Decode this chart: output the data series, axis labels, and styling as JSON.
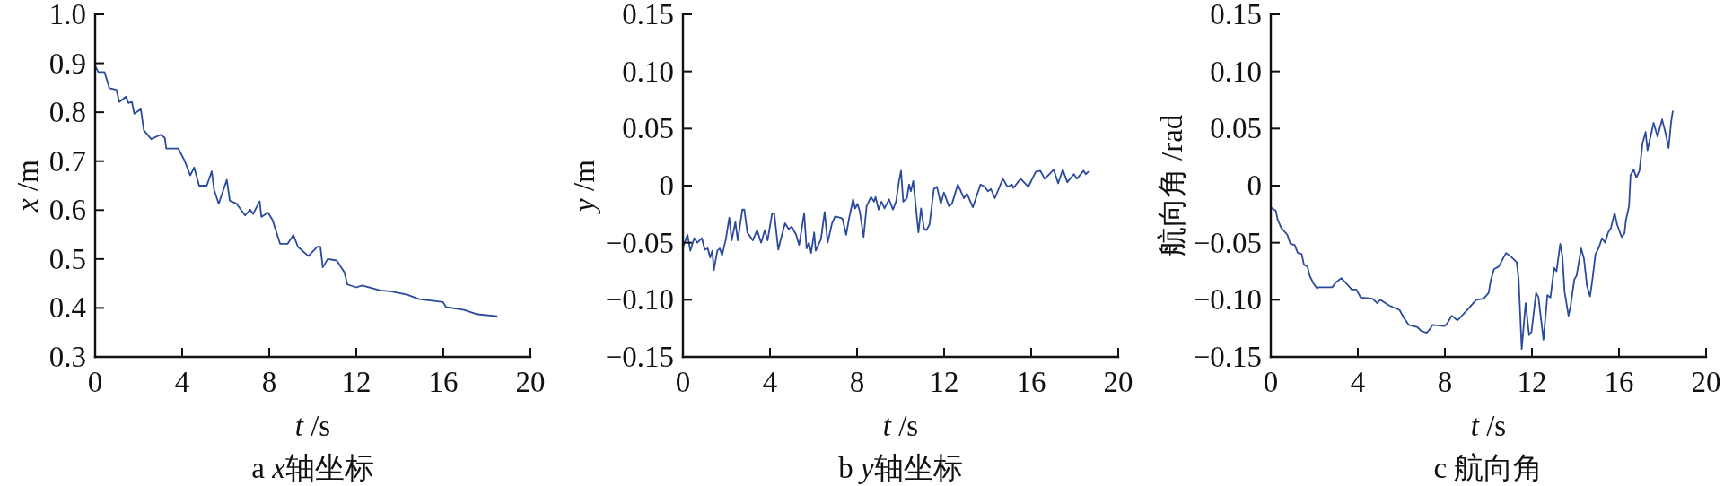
{
  "chart_data": [
    {
      "type": "line",
      "title": "a x轴坐标",
      "xlabel": "t /s",
      "ylabel": "x /m",
      "xlim": [
        0,
        20
      ],
      "xticks": [
        0,
        4,
        8,
        12,
        16,
        20
      ],
      "ylim": [
        0.3,
        1.0
      ],
      "yticks": [
        0.3,
        0.4,
        0.5,
        0.6,
        0.7,
        0.8,
        0.9,
        {
          "value": 1,
          "label": "1.0"
        }
      ],
      "x": [
        0,
        0.15,
        0.43,
        0.66,
        0.98,
        1.11,
        1.42,
        1.53,
        1.69,
        1.8,
        2.1,
        2.24,
        2.58,
        3.0,
        3.2,
        3.27,
        3.82,
        4.1,
        4.37,
        4.55,
        4.78,
        5.13,
        5.36,
        5.47,
        5.68,
        6.05,
        6.19,
        6.5,
        6.89,
        7.12,
        7.26,
        7.56,
        7.64,
        7.94,
        8.15,
        8.5,
        8.84,
        9.11,
        9.32,
        9.8,
        10.21,
        10.35,
        10.46,
        10.69,
        11.1,
        11.45,
        11.59,
        12.0,
        12.27,
        13.1,
        13.58,
        14.34,
        14.89,
        15.99,
        16.12,
        16.95,
        17.57,
        18.46
      ],
      "series": [
        {
          "color": "#2b4a9b",
          "values": [
            0.895,
            0.882,
            0.882,
            0.849,
            0.846,
            0.821,
            0.832,
            0.819,
            0.821,
            0.797,
            0.806,
            0.763,
            0.745,
            0.754,
            0.748,
            0.726,
            0.726,
            0.702,
            0.671,
            0.687,
            0.65,
            0.65,
            0.679,
            0.641,
            0.613,
            0.662,
            0.619,
            0.613,
            0.589,
            0.601,
            0.592,
            0.618,
            0.586,
            0.595,
            0.58,
            0.531,
            0.531,
            0.549,
            0.525,
            0.506,
            0.525,
            0.525,
            0.483,
            0.5,
            0.497,
            0.473,
            0.448,
            0.442,
            0.446,
            0.436,
            0.434,
            0.427,
            0.418,
            0.412,
            0.402,
            0.396,
            0.387,
            0.383
          ]
        }
      ]
    },
    {
      "type": "line",
      "title": "b y轴坐标",
      "xlabel": "t /s",
      "ylabel": "y /m",
      "xlim": [
        0,
        20
      ],
      "xticks": [
        0,
        4,
        8,
        12,
        16,
        20
      ],
      "ylim": [
        -0.15,
        0.15
      ],
      "yticks": [
        {
          "value": -0.15,
          "label": "−0.15"
        },
        {
          "value": -0.1,
          "label": "−0.10"
        },
        {
          "value": -0.05,
          "label": "−0.05"
        },
        0,
        0.05,
        {
          "value": 0.1,
          "label": "0.10"
        },
        0.15
      ],
      "x": [
        0,
        0.21,
        0.34,
        0.52,
        0.66,
        0.87,
        1.0,
        1.14,
        1.25,
        1.35,
        1.42,
        1.58,
        1.69,
        1.8,
        1.97,
        2.13,
        2.24,
        2.41,
        2.52,
        2.73,
        2.82,
        2.96,
        3.21,
        3.41,
        3.59,
        3.76,
        3.89,
        4.1,
        4.2,
        4.38,
        4.51,
        4.69,
        4.86,
        5.0,
        5.2,
        5.34,
        5.57,
        5.68,
        5.79,
        5.89,
        6.03,
        6.1,
        6.34,
        6.51,
        6.65,
        6.85,
        6.99,
        7.2,
        7.33,
        7.5,
        7.64,
        7.82,
        7.91,
        8.02,
        8.13,
        8.3,
        8.44,
        8.64,
        8.78,
        8.85,
        8.99,
        9.12,
        9.26,
        9.47,
        9.65,
        9.79,
        9.92,
        10.02,
        10.12,
        10.29,
        10.39,
        10.47,
        10.58,
        10.75,
        10.82,
        10.94,
        11.08,
        11.19,
        11.33,
        11.53,
        11.67,
        11.85,
        11.99,
        12.22,
        12.36,
        12.63,
        12.91,
        13.05,
        13.32,
        13.67,
        13.87,
        14.01,
        14.15,
        14.33,
        14.7,
        14.91,
        15.11,
        15.18,
        15.52,
        15.87,
        16.21,
        16.42,
        16.62,
        16.83,
        17.04,
        17.24,
        17.45,
        17.66,
        17.96,
        18.1,
        18.41,
        18.51,
        18.62
      ],
      "series": [
        {
          "color": "#2b4a9b",
          "values": [
            -0.054,
            -0.043,
            -0.057,
            -0.046,
            -0.05,
            -0.046,
            -0.056,
            -0.055,
            -0.063,
            -0.057,
            -0.074,
            -0.057,
            -0.055,
            -0.061,
            -0.047,
            -0.028,
            -0.048,
            -0.032,
            -0.048,
            -0.021,
            -0.021,
            -0.041,
            -0.048,
            -0.039,
            -0.05,
            -0.039,
            -0.048,
            -0.024,
            -0.025,
            -0.056,
            -0.046,
            -0.033,
            -0.038,
            -0.036,
            -0.043,
            -0.052,
            -0.024,
            -0.055,
            -0.05,
            -0.059,
            -0.041,
            -0.057,
            -0.047,
            -0.023,
            -0.05,
            -0.033,
            -0.027,
            -0.028,
            -0.029,
            -0.043,
            -0.028,
            -0.012,
            -0.02,
            -0.016,
            -0.023,
            -0.045,
            -0.018,
            -0.01,
            -0.014,
            -0.01,
            -0.021,
            -0.014,
            -0.02,
            -0.012,
            -0.021,
            -0.014,
            0.003,
            0.013,
            -0.014,
            -0.011,
            0.001,
            -0.005,
            0.004,
            -0.028,
            -0.041,
            -0.02,
            -0.038,
            -0.039,
            -0.034,
            -0.003,
            -0.001,
            -0.016,
            -0.006,
            -0.018,
            -0.016,
            0.001,
            -0.011,
            -0.007,
            -0.019,
            0.001,
            -0.001,
            -0.005,
            -0.003,
            -0.011,
            0.006,
            -0.001,
            0.001,
            -0.002,
            0.006,
            -0.001,
            0.012,
            0.013,
            0.006,
            0.01,
            0.014,
            0.002,
            0.014,
            0.003,
            0.01,
            0.006,
            0.013,
            0.01,
            0.012
          ]
        }
      ]
    },
    {
      "type": "line",
      "title": "c 航向角",
      "xlabel": "t /s",
      "ylabel": "航向角 /rad",
      "xlim": [
        0,
        20
      ],
      "xticks": [
        0,
        4,
        8,
        12,
        16,
        20
      ],
      "ylim": [
        -0.15,
        0.15
      ],
      "yticks": [
        {
          "value": -0.15,
          "label": "−0.15"
        },
        {
          "value": -0.1,
          "label": "−0.10"
        },
        {
          "value": -0.05,
          "label": "−0.05"
        },
        0,
        0.05,
        {
          "value": 0.1,
          "label": "0.10"
        },
        0.15
      ],
      "x": [
        0,
        0.23,
        0.32,
        0.48,
        0.76,
        0.9,
        1.1,
        1.24,
        1.42,
        1.52,
        1.69,
        1.79,
        1.97,
        2.13,
        2.2,
        2.82,
        2.98,
        3.24,
        3.44,
        3.72,
        3.93,
        4.13,
        4.68,
        4.89,
        5.03,
        5.44,
        5.92,
        6.12,
        6.34,
        6.54,
        6.74,
        6.89,
        7.16,
        7.3,
        7.44,
        7.99,
        8.13,
        8.31,
        8.58,
        9.02,
        9.44,
        9.78,
        10.01,
        10.12,
        10.26,
        10.47,
        10.81,
        11.02,
        11.3,
        11.39,
        11.53,
        11.71,
        11.87,
        11.98,
        12.19,
        12.3,
        12.53,
        12.71,
        12.85,
        13.02,
        13.13,
        13.3,
        13.4,
        13.5,
        13.68,
        13.77,
        13.95,
        14.05,
        14.26,
        14.39,
        14.53,
        14.67,
        14.78,
        14.92,
        15.08,
        15.22,
        15.36,
        15.5,
        15.63,
        15.8,
        15.91,
        16.12,
        16.25,
        16.32,
        16.46,
        16.53,
        16.67,
        16.8,
        16.94,
        17.08,
        17.22,
        17.31,
        17.59,
        17.77,
        17.98,
        18.14,
        18.28,
        18.39,
        18.47
      ],
      "series": [
        {
          "color": "#2b4a9b",
          "values": [
            -0.019,
            -0.022,
            -0.03,
            -0.037,
            -0.043,
            -0.051,
            -0.052,
            -0.059,
            -0.06,
            -0.069,
            -0.071,
            -0.079,
            -0.086,
            -0.09,
            -0.089,
            -0.089,
            -0.085,
            -0.081,
            -0.085,
            -0.091,
            -0.091,
            -0.098,
            -0.099,
            -0.103,
            -0.1,
            -0.105,
            -0.109,
            -0.116,
            -0.122,
            -0.123,
            -0.124,
            -0.127,
            -0.129,
            -0.126,
            -0.122,
            -0.123,
            -0.12,
            -0.114,
            -0.118,
            -0.109,
            -0.1,
            -0.099,
            -0.094,
            -0.082,
            -0.073,
            -0.071,
            -0.059,
            -0.062,
            -0.067,
            -0.082,
            -0.143,
            -0.103,
            -0.131,
            -0.128,
            -0.094,
            -0.098,
            -0.135,
            -0.096,
            -0.098,
            -0.072,
            -0.075,
            -0.051,
            -0.062,
            -0.093,
            -0.114,
            -0.106,
            -0.082,
            -0.079,
            -0.055,
            -0.064,
            -0.088,
            -0.097,
            -0.082,
            -0.06,
            -0.054,
            -0.046,
            -0.05,
            -0.041,
            -0.037,
            -0.024,
            -0.034,
            -0.045,
            -0.042,
            -0.03,
            -0.018,
            0.009,
            0.014,
            0.007,
            0.013,
            0.037,
            0.047,
            0.031,
            0.055,
            0.043,
            0.058,
            0.046,
            0.033,
            0.055,
            0.065
          ]
        }
      ]
    }
  ]
}
